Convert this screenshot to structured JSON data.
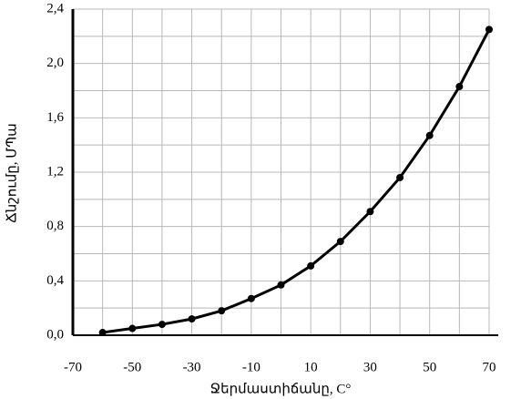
{
  "chart_data": {
    "type": "line",
    "x_label": "Ջերմաստիճանը, C°",
    "y_label": "Ճնշումը, ՄՊա",
    "x": [
      -60,
      -50,
      -40,
      -30,
      -20,
      -10,
      0,
      10,
      20,
      30,
      40,
      50,
      60,
      70
    ],
    "series": [
      {
        "color": "#000000",
        "values": [
          0.02,
          0.05,
          0.08,
          0.12,
          0.18,
          0.27,
          0.37,
          0.51,
          0.69,
          0.91,
          1.16,
          1.47,
          1.83,
          2.25
        ]
      }
    ],
    "xlim": [
      -70,
      70
    ],
    "xticks": [
      -70,
      -50,
      -30,
      -10,
      10,
      30,
      50,
      70
    ],
    "x_minor_ticks": [
      -60,
      -40,
      -20,
      0,
      20,
      40,
      60
    ],
    "ylim": [
      0,
      2.4
    ],
    "yticks": [
      {
        "value": 0,
        "label": "0,0"
      },
      {
        "value": 0.4,
        "label": "0,4"
      },
      {
        "value": 0.8,
        "label": "0,8"
      },
      {
        "value": 1.2,
        "label": "1,2"
      },
      {
        "value": 1.6,
        "label": "1,6"
      },
      {
        "value": 2.0,
        "label": "2,0"
      },
      {
        "value": 2.4,
        "label": "2,4"
      }
    ],
    "y_minor_ticks": [
      0.2,
      0.6,
      1.0,
      1.4,
      1.8,
      2.2
    ],
    "grid": true
  }
}
